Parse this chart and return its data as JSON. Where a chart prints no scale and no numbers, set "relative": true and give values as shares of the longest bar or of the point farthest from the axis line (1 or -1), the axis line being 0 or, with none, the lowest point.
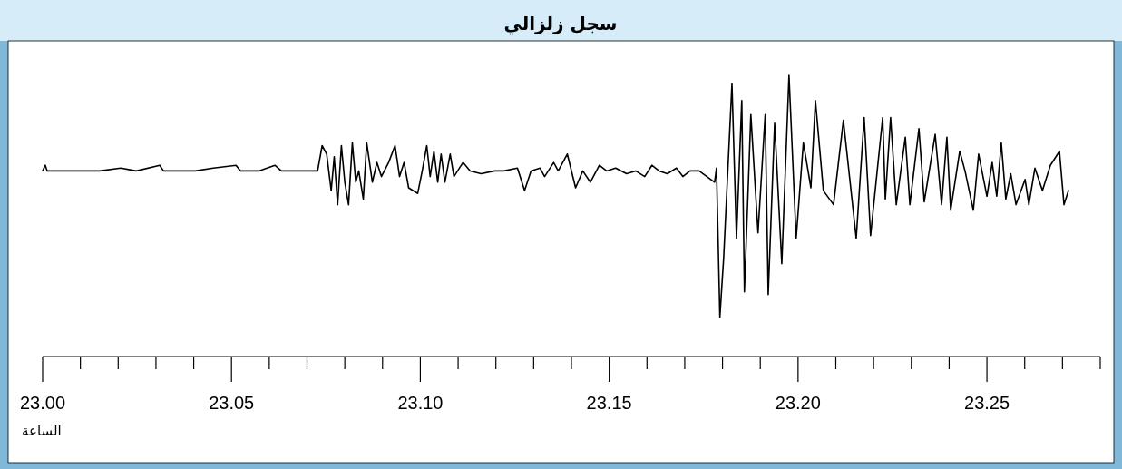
{
  "chart_data": {
    "type": "line",
    "title": "سجل زلزالي",
    "xlabel": "الساعة",
    "relative": true,
    "xlim": [
      23.0,
      23.28
    ],
    "xticks": [
      {
        "value": 23.0,
        "label": "23.00"
      },
      {
        "value": 23.01,
        "label": null
      },
      {
        "value": 23.02,
        "label": null
      },
      {
        "value": 23.03,
        "label": null
      },
      {
        "value": 23.04,
        "label": null
      },
      {
        "value": 23.05,
        "label": "23.05"
      },
      {
        "value": 23.06,
        "label": null
      },
      {
        "value": 23.07,
        "label": null
      },
      {
        "value": 23.08,
        "label": null
      },
      {
        "value": 23.09,
        "label": null
      },
      {
        "value": 23.1,
        "label": "23.10"
      },
      {
        "value": 23.11,
        "label": null
      },
      {
        "value": 23.12,
        "label": null
      },
      {
        "value": 23.13,
        "label": null
      },
      {
        "value": 23.14,
        "label": null
      },
      {
        "value": 23.15,
        "label": "23.15"
      },
      {
        "value": 23.16,
        "label": null
      },
      {
        "value": 23.17,
        "label": null
      },
      {
        "value": 23.18,
        "label": null
      },
      {
        "value": 23.19,
        "label": null
      },
      {
        "value": 23.2,
        "label": "23.20"
      },
      {
        "value": 23.21,
        "label": null
      },
      {
        "value": 23.22,
        "label": null
      },
      {
        "value": 23.23,
        "label": null
      },
      {
        "value": 23.24,
        "label": null
      },
      {
        "value": 23.25,
        "label": "23.25"
      },
      {
        "value": 23.26,
        "label": null
      },
      {
        "value": 23.27,
        "label": null
      },
      {
        "value": 23.28,
        "label": null
      }
    ],
    "series": [
      {
        "color": "#000000",
        "x": [
          23.0,
          23.0007,
          23.0012,
          23.0055,
          23.0103,
          23.0151,
          23.0207,
          23.0248,
          23.031,
          23.032,
          23.0368,
          23.0404,
          23.0452,
          23.0512,
          23.0524,
          23.0572,
          23.0615,
          23.0632,
          23.0704,
          23.0728,
          23.074,
          23.0752,
          23.0764,
          23.0772,
          23.0781,
          23.0791,
          23.08,
          23.081,
          23.082,
          23.0829,
          23.0837,
          23.0849,
          23.0858,
          23.0873,
          23.0885,
          23.0897,
          23.0916,
          23.0933,
          23.0945,
          23.0957,
          23.0969,
          23.0993,
          23.1005,
          23.1017,
          23.1026,
          23.1036,
          23.1046,
          23.1055,
          23.1065,
          23.1079,
          23.1089,
          23.1113,
          23.1132,
          23.1161,
          23.1197,
          23.1221,
          23.1257,
          23.1276,
          23.1293,
          23.1317,
          23.1329,
          23.1353,
          23.1365,
          23.1389,
          23.1411,
          23.143,
          23.145,
          23.1474,
          23.1493,
          23.1517,
          23.1546,
          23.157,
          23.1594,
          23.1613,
          23.1632,
          23.1654,
          23.1678,
          23.1695,
          23.1714,
          23.1738,
          23.1779,
          23.1784,
          23.1793,
          23.1803,
          23.1825,
          23.1837,
          23.1851,
          23.1858,
          23.1875,
          23.1894,
          23.1913,
          23.1921,
          23.1938,
          23.1957,
          23.1976,
          23.1995,
          23.2014,
          23.2034,
          23.2046,
          23.2067,
          23.2094,
          23.212,
          23.2154,
          23.2175,
          23.2192,
          23.2224,
          23.2231,
          23.2245,
          23.226,
          23.2284,
          23.2296,
          23.232,
          23.2334,
          23.2363,
          23.238,
          23.2394,
          23.2404,
          23.2428,
          23.2442,
          23.2464,
          23.2478,
          23.25,
          23.2514,
          23.2526,
          23.2538,
          23.255,
          23.2563,
          23.2577,
          23.2601,
          23.2611,
          23.2627,
          23.2647,
          23.2668,
          23.2692,
          23.2704,
          23.2716
        ],
        "values": [
          0.66,
          0.68,
          0.66,
          0.66,
          0.66,
          0.66,
          0.67,
          0.66,
          0.68,
          0.66,
          0.66,
          0.66,
          0.67,
          0.68,
          0.66,
          0.66,
          0.68,
          0.66,
          0.66,
          0.66,
          0.75,
          0.72,
          0.59,
          0.71,
          0.54,
          0.75,
          0.62,
          0.54,
          0.76,
          0.62,
          0.66,
          0.56,
          0.76,
          0.62,
          0.69,
          0.64,
          0.69,
          0.75,
          0.64,
          0.69,
          0.6,
          0.58,
          0.66,
          0.75,
          0.64,
          0.73,
          0.62,
          0.72,
          0.62,
          0.72,
          0.64,
          0.69,
          0.66,
          0.65,
          0.66,
          0.66,
          0.67,
          0.59,
          0.66,
          0.67,
          0.64,
          0.69,
          0.66,
          0.72,
          0.6,
          0.66,
          0.62,
          0.68,
          0.66,
          0.67,
          0.65,
          0.66,
          0.64,
          0.68,
          0.66,
          0.65,
          0.67,
          0.64,
          0.66,
          0.66,
          0.62,
          0.67,
          0.14,
          0.35,
          0.97,
          0.42,
          0.91,
          0.23,
          0.86,
          0.44,
          0.86,
          0.22,
          0.83,
          0.33,
          1.0,
          0.42,
          0.76,
          0.6,
          0.91,
          0.59,
          0.54,
          0.84,
          0.42,
          0.85,
          0.43,
          0.85,
          0.56,
          0.85,
          0.54,
          0.78,
          0.54,
          0.81,
          0.55,
          0.79,
          0.54,
          0.78,
          0.52,
          0.73,
          0.66,
          0.52,
          0.72,
          0.57,
          0.69,
          0.57,
          0.76,
          0.56,
          0.65,
          0.54,
          0.63,
          0.54,
          0.67,
          0.59,
          0.68,
          0.73,
          0.54,
          0.59
        ]
      }
    ]
  }
}
